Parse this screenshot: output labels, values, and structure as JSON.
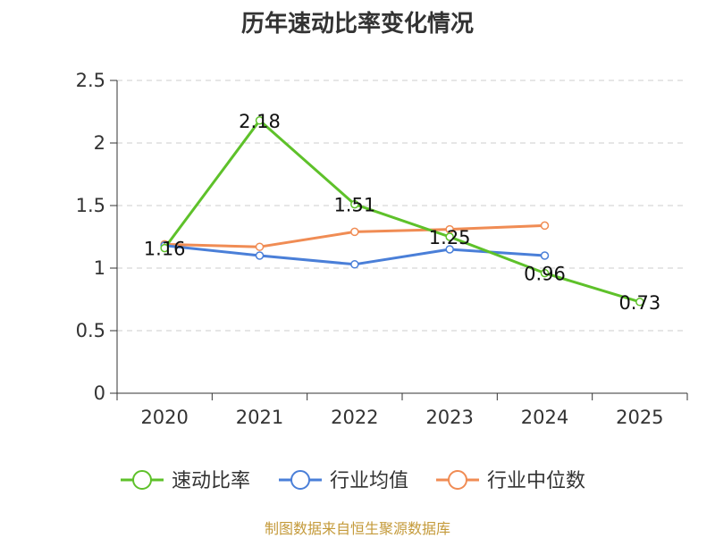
{
  "chart_data": {
    "type": "line",
    "title": "历年速动比率变化情况",
    "categories": [
      "2020",
      "2021",
      "2022",
      "2023",
      "2024",
      "2025"
    ],
    "ylim": [
      0,
      2.5
    ],
    "yticks": [
      0,
      0.5,
      1,
      1.5,
      2,
      2.5
    ],
    "ytick_labels": [
      "0",
      "0.5",
      "1",
      "1.5",
      "2",
      "2.5"
    ],
    "grid": true,
    "legend_position": "bottom",
    "series": [
      {
        "name": "速动比率",
        "color": "#5ec12a",
        "values": [
          1.16,
          2.18,
          1.51,
          1.25,
          0.96,
          0.73
        ],
        "labels": [
          "1.16",
          "2.18",
          "1.51",
          "1.25",
          "0.96",
          "0.73"
        ]
      },
      {
        "name": "行业均值",
        "color": "#4a7fd8",
        "values": [
          1.18,
          1.1,
          1.03,
          1.15,
          1.1,
          null
        ]
      },
      {
        "name": "行业中位数",
        "color": "#f08c54",
        "values": [
          1.19,
          1.17,
          1.29,
          1.31,
          1.34,
          null
        ]
      }
    ]
  },
  "source": "制图数据来自恒生聚源数据库"
}
